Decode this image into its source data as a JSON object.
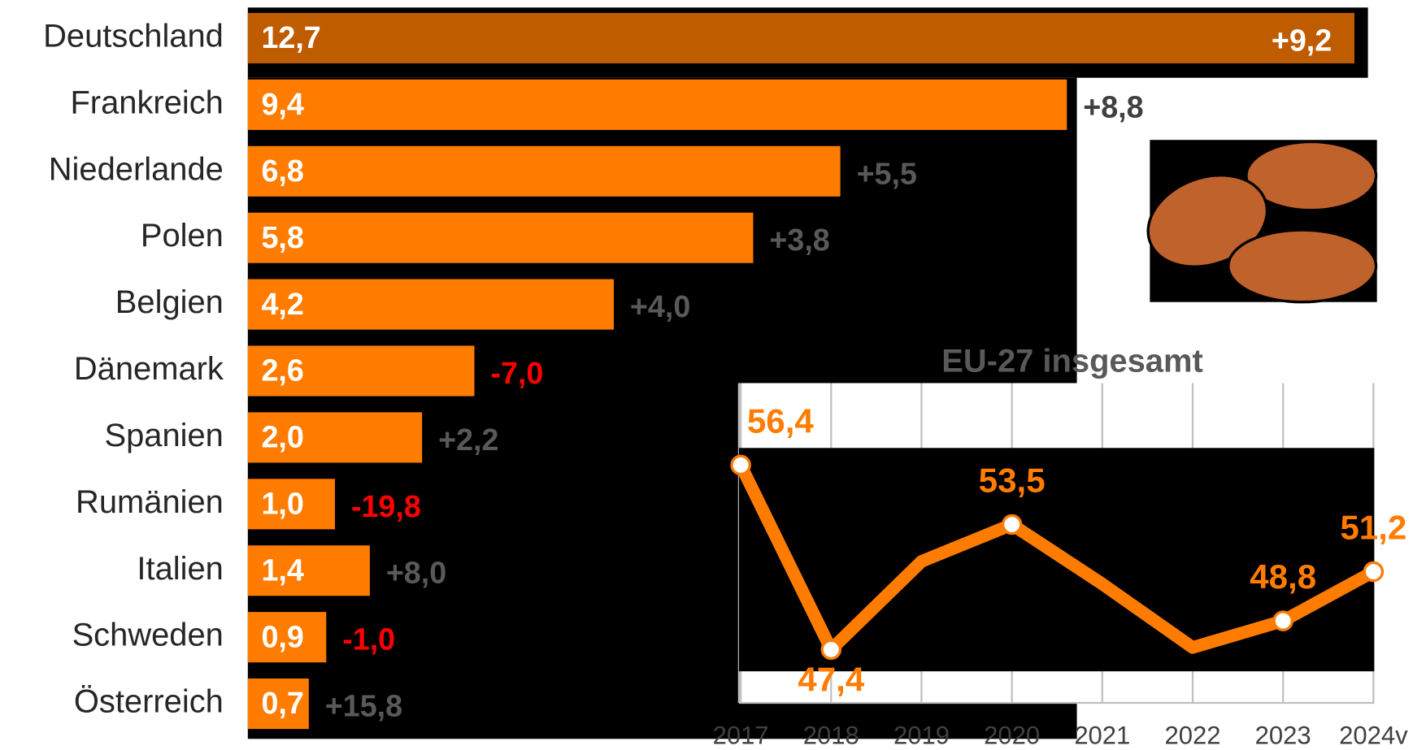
{
  "chart_data": [
    {
      "type": "hbar",
      "categories": [
        "Deutschland",
        "Frankreich",
        "Niederlande",
        "Polen",
        "Belgien",
        "Dänemark",
        "Spanien",
        "Rumänien",
        "Italien",
        "Schweden",
        "Österreich"
      ],
      "values": [
        12.7,
        9.4,
        6.8,
        5.8,
        4.2,
        2.6,
        2.0,
        1.0,
        1.4,
        0.9,
        0.7
      ],
      "value_labels": [
        "12,7",
        "9,4",
        "6,8",
        "5,8",
        "4,2",
        "2,6",
        "2,0",
        "1,0",
        "1,4",
        "0,9",
        "0,7"
      ],
      "colors": [
        "#c05c00",
        "#ff7c00",
        "#ff7c00",
        "#ff7c00",
        "#ff7c00",
        "#ff7c00",
        "#ff7c00",
        "#ff7c00",
        "#ff7c00",
        "#ff7c00",
        "#ff7c00"
      ],
      "change_labels": [
        "+9,2",
        "+8,8",
        "+5,5",
        "+3,8",
        "+4,0",
        "-7,0",
        "+2,2",
        "-19,8",
        "+8,0",
        "-1,0",
        "+15,8"
      ],
      "change_colors": [
        "#ffffff",
        "#404040",
        "#595959",
        "#595959",
        "#595959",
        "#ff0000",
        "#595959",
        "#ff0000",
        "#595959",
        "#ff0000",
        "#595959"
      ]
    },
    {
      "type": "line",
      "title": "EU-27 insgesamt",
      "categories": [
        "2017",
        "2018",
        "2019",
        "2020",
        "2021",
        "2022",
        "2023",
        "2024v"
      ],
      "values": [
        56.4,
        47.4,
        51.7,
        53.5,
        50.6,
        47.5,
        48.8,
        51.2
      ],
      "value_labels": [
        "56,4",
        "47,4",
        null,
        "53,5",
        null,
        null,
        "48,8",
        "51,2"
      ],
      "color": "#ff7c00",
      "ylim": [
        44.8,
        60.4
      ],
      "grid": true
    }
  ]
}
